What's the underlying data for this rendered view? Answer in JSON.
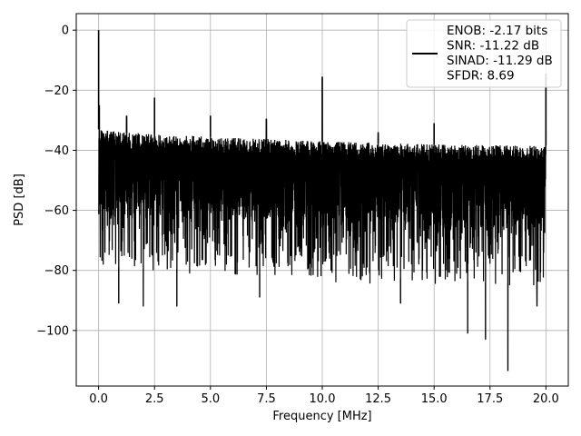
{
  "chart_data": {
    "type": "line",
    "title": "",
    "xlabel": "Frequency [MHz]",
    "ylabel": "PSD [dB]",
    "xlim": [
      -1,
      21.0
    ],
    "ylim": [
      -118.5,
      5.5
    ],
    "x_ticks": [
      0.0,
      2.5,
      5.0,
      7.5,
      10.0,
      12.5,
      15.0,
      17.5,
      20.0
    ],
    "x_tick_labels": [
      "0.0",
      "2.5",
      "5.0",
      "7.5",
      "10.0",
      "12.5",
      "15.0",
      "17.5",
      "20.0"
    ],
    "y_ticks": [
      0,
      -20,
      -40,
      -60,
      -80,
      -100
    ],
    "y_tick_labels": [
      "0",
      "−20",
      "−40",
      "−60",
      "−80",
      "−100"
    ],
    "grid": true,
    "legend_position": "top-right",
    "series": [
      {
        "name": "ENOB: -2.17 bits\nSNR: -11.22 dB\nSINAD: -11.29 dB\nSFDR: 8.69",
        "color": "#000000",
        "noise_floor_top": [
          [
            0,
            -33
          ],
          [
            1,
            -34
          ],
          [
            5,
            -35.5
          ],
          [
            10,
            -37
          ],
          [
            15,
            -38
          ],
          [
            20,
            -38.5
          ]
        ],
        "noise_floor_bottom": [
          [
            0,
            -78
          ],
          [
            1,
            -79
          ],
          [
            5,
            -80
          ],
          [
            10,
            -82
          ],
          [
            15,
            -83
          ],
          [
            20,
            -85
          ]
        ],
        "peaks": [
          {
            "x": 0.0,
            "y": 0
          },
          {
            "x": 0.03,
            "y": -25
          },
          {
            "x": 1.25,
            "y": -28.5
          },
          {
            "x": 2.5,
            "y": -22.5
          },
          {
            "x": 5.0,
            "y": -28.5
          },
          {
            "x": 7.5,
            "y": -29.5
          },
          {
            "x": 10.0,
            "y": -15.5
          },
          {
            "x": 12.5,
            "y": -34
          },
          {
            "x": 15.0,
            "y": -31
          },
          {
            "x": 20.0,
            "y": -14.5
          }
        ],
        "deep_dips": [
          {
            "x": 0.9,
            "y": -91
          },
          {
            "x": 2.0,
            "y": -92
          },
          {
            "x": 3.5,
            "y": -92
          },
          {
            "x": 7.2,
            "y": -89
          },
          {
            "x": 13.5,
            "y": -91
          },
          {
            "x": 16.5,
            "y": -101
          },
          {
            "x": 17.3,
            "y": -103
          },
          {
            "x": 18.3,
            "y": -113.5
          },
          {
            "x": 19.6,
            "y": -92
          }
        ]
      }
    ]
  }
}
